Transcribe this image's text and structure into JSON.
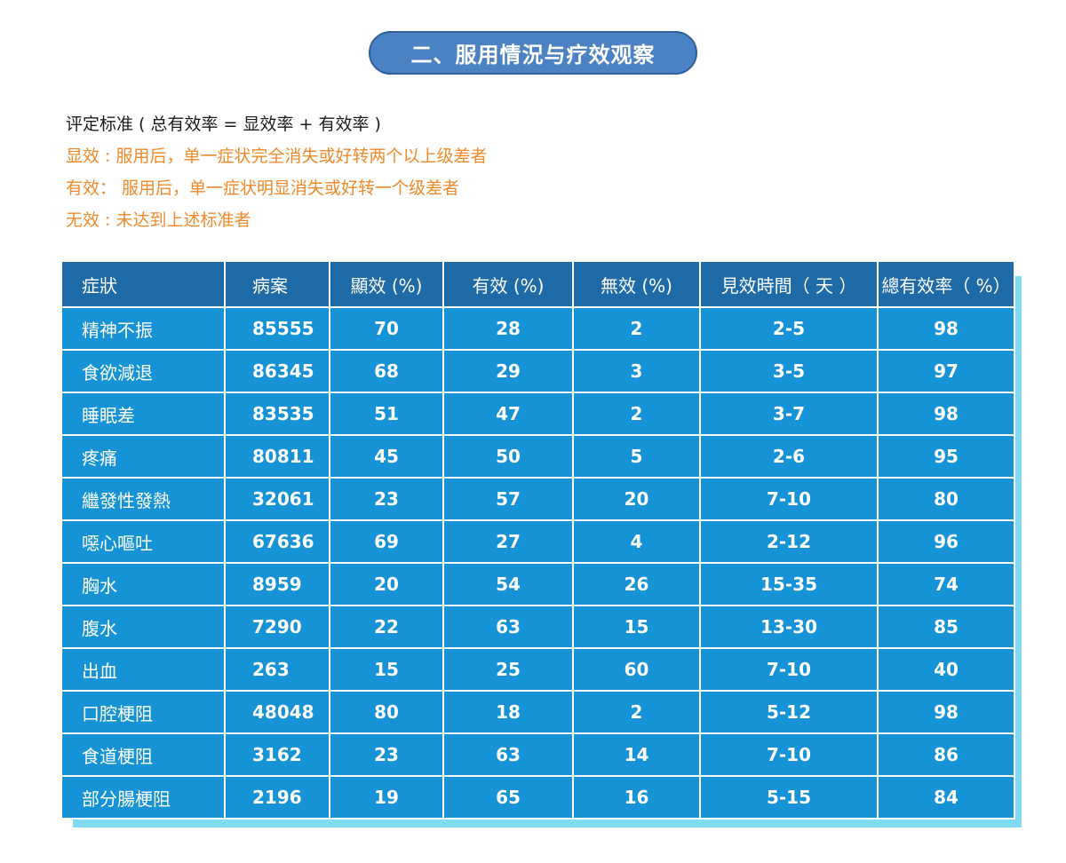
{
  "title": "二、服用情況与疗效观察",
  "criteria": {
    "heading": "评定标准 ( 总有效率 = 显效率 + 有效率 )",
    "marked": "显效 : 服用后，单一症状完全消失或好转两个以上级差者",
    "effective": "有效： 服用后，单一症状明显消失或好转一个级差者",
    "none": "无效 : 未达到上述标准者"
  },
  "table": {
    "headers": [
      "症狀",
      "病案",
      "顯效 (%)",
      "有效 (%)",
      "無效 (%)",
      "見效時間（ 天 ）",
      "總有效率（ %）"
    ],
    "rows": [
      [
        "精神不振",
        "85555",
        "70",
        "28",
        "2",
        "2-5",
        "98"
      ],
      [
        "食欲減退",
        "86345",
        "68",
        "29",
        "3",
        "3-5",
        "97"
      ],
      [
        "睡眠差",
        "83535",
        "51",
        "47",
        "2",
        "3-7",
        "98"
      ],
      [
        "疼痛",
        "80811",
        "45",
        "50",
        "5",
        "2-6",
        "95"
      ],
      [
        "繼發性發熱",
        "32061",
        "23",
        "57",
        "20",
        "7-10",
        "80"
      ],
      [
        "噁心嘔吐",
        "67636",
        "69",
        "27",
        "4",
        "2-12",
        "96"
      ],
      [
        "胸水",
        "8959",
        "20",
        "54",
        "26",
        "15-35",
        "74"
      ],
      [
        "腹水",
        "7290",
        "22",
        "63",
        "15",
        "13-30",
        "85"
      ],
      [
        "出血",
        "263",
        "15",
        "25",
        "60",
        "7-10",
        "40"
      ],
      [
        "口腔梗阻",
        "48048",
        "80",
        "18",
        "2",
        "5-12",
        "98"
      ],
      [
        "食道梗阻",
        "3162",
        "23",
        "63",
        "14",
        "7-10",
        "86"
      ],
      [
        "部分腸梗阻",
        "2196",
        "19",
        "65",
        "16",
        "5-15",
        "84"
      ]
    ]
  },
  "colors": {
    "title_bg": "#4a82c3",
    "header_bg": "#1f6ba8",
    "row_bg": "#1693d6",
    "shadow": "#7fdaf3",
    "criteria_orange": "#f08a2a"
  }
}
